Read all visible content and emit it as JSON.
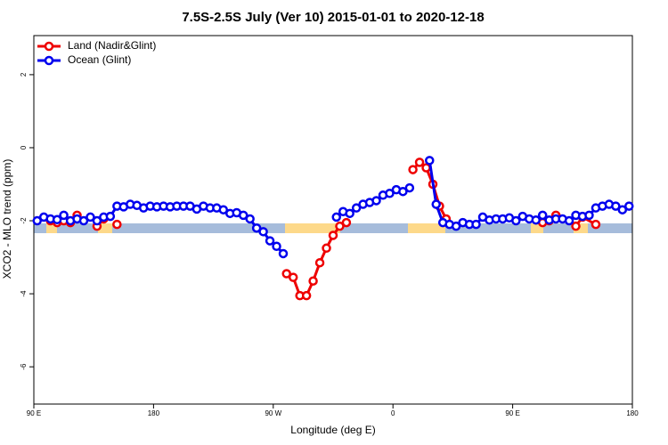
{
  "chart_data": {
    "type": "line",
    "title": "7.5S-2.5S July (Ver 10)   2015-01-01 to 2020-12-18",
    "x_label": "Longitude (deg E)",
    "y_label": "XCO2 - MLO trend (ppm)",
    "xlim": [
      90,
      540
    ],
    "ylim": [
      -7.02,
      3.07
    ],
    "xticks": [
      {
        "value": 90,
        "label": "90 E"
      },
      180,
      {
        "value": 270,
        "label": "90 W"
      },
      {
        "value": 360,
        "label": "0"
      },
      {
        "value": 450,
        "label": "90 E"
      },
      {
        "value": 540,
        "label": "180"
      }
    ],
    "yticks": [
      -6,
      -4,
      -2,
      0,
      2
    ],
    "legend": "top-left",
    "series": [
      {
        "name": "Land (Nadir&Glint)",
        "color": "#ee0000",
        "x": [
          102.5,
          107.5,
          112.5,
          117.5,
          122.5,
          130,
          137.5,
          142.5,
          147.5,
          152.5,
          200,
          280,
          285,
          290,
          295,
          300,
          305,
          310,
          315,
          320,
          325,
          350,
          375,
          380,
          385,
          390,
          395,
          400,
          440,
          472.5,
          477.5,
          482.5,
          490,
          497.5,
          502.5,
          512.5
        ],
        "values": [
          -2.0,
          -2.05,
          -2.0,
          -2.05,
          -1.85,
          null,
          -2.15,
          -1.95,
          null,
          -2.1,
          null,
          -3.45,
          -3.55,
          -4.05,
          -4.05,
          -3.65,
          -3.15,
          -2.75,
          -2.4,
          -2.15,
          -2.05,
          null,
          -0.6,
          -0.4,
          -0.55,
          -1.0,
          -1.6,
          -1.95,
          null,
          -2.05,
          -2.0,
          -1.85,
          null,
          -2.15,
          -1.9,
          -2.1
        ]
      },
      {
        "name": "Ocean (Glint)",
        "color": "#0000ee",
        "x": [
          92.5,
          97.5,
          102.5,
          107.5,
          112.5,
          117.5,
          122.5,
          127.5,
          132.5,
          137.5,
          142.5,
          147.5,
          152.5,
          157.5,
          162.5,
          167.5,
          172.5,
          177.5,
          182.5,
          187.5,
          192.5,
          197.5,
          202.5,
          207.5,
          212.5,
          217.5,
          222.5,
          227.5,
          232.5,
          237.5,
          242.5,
          247.5,
          252.5,
          257.5,
          262.5,
          267.5,
          272.5,
          277.5,
          282.5,
          287.5,
          292.5,
          297.5,
          302.5,
          307.5,
          312.5,
          317.5,
          322.5,
          327.5,
          332.5,
          337.5,
          342.5,
          347.5,
          352.5,
          357.5,
          362.5,
          367.5,
          372.5,
          377.5,
          382.5,
          387.5,
          392.5,
          397.5,
          402.5,
          407.5,
          412.5,
          417.5,
          422.5,
          427.5,
          432.5,
          437.5,
          442.5,
          447.5,
          452.5,
          457.5,
          462.5,
          467.5,
          472.5,
          477.5,
          482.5,
          487.5,
          492.5,
          497.5,
          502.5,
          507.5,
          512.5,
          517.5,
          522.5,
          527.5,
          532.5,
          537.5
        ],
        "values": [
          -2.0,
          -1.9,
          -1.95,
          -1.97,
          -1.85,
          -2.0,
          -1.95,
          -2.0,
          -1.9,
          -2.0,
          -1.9,
          -1.88,
          -1.6,
          -1.62,
          -1.55,
          -1.58,
          -1.65,
          -1.6,
          -1.62,
          -1.6,
          -1.62,
          -1.6,
          -1.6,
          -1.6,
          -1.68,
          -1.6,
          -1.65,
          -1.65,
          -1.7,
          -1.8,
          -1.78,
          -1.85,
          -1.95,
          -2.2,
          -2.3,
          -2.55,
          -2.7,
          -2.9,
          null,
          null,
          null,
          null,
          null,
          null,
          null,
          -1.9,
          -1.75,
          -1.8,
          -1.65,
          -1.55,
          -1.5,
          -1.45,
          -1.3,
          -1.25,
          -1.15,
          -1.2,
          -1.1,
          null,
          null,
          -0.35,
          -1.55,
          -2.05,
          -2.1,
          -2.15,
          -2.05,
          -2.1,
          -2.1,
          -1.9,
          -1.98,
          -1.95,
          -1.95,
          -1.92,
          -2.0,
          -1.88,
          -1.95,
          -1.98,
          -1.85,
          -1.98,
          -1.95,
          -1.95,
          -2.0,
          -1.85,
          -1.88,
          -1.85,
          -1.65,
          -1.6,
          -1.55,
          -1.6,
          -1.7,
          -1.6
        ]
      }
    ]
  }
}
